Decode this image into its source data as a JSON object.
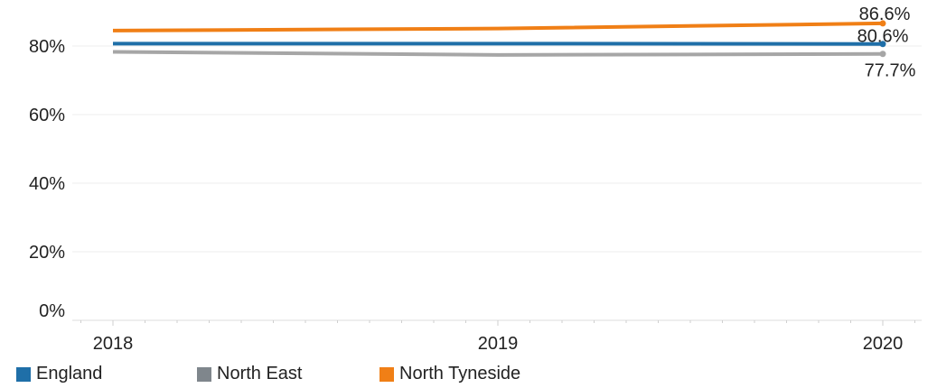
{
  "chart_data": {
    "type": "line",
    "x": [
      "2018",
      "2019",
      "2020"
    ],
    "ylim": [
      0,
      0.95
    ],
    "yticks": [
      0,
      0.2,
      0.4,
      0.6,
      0.8
    ],
    "ytick_labels": [
      "0%",
      "20%",
      "40%",
      "60%",
      "80%"
    ],
    "grid": "horizontal",
    "legend_position": "bottom-left",
    "title": "",
    "xlabel": "",
    "ylabel": "",
    "series": [
      {
        "name": "England",
        "color": "#1f6fa8",
        "values": [
          0.807,
          0.807,
          0.806
        ],
        "end_label": "80.6%"
      },
      {
        "name": "North East",
        "color": "#a6a6a6",
        "values": [
          0.783,
          0.774,
          0.777
        ],
        "end_label": "77.7%"
      },
      {
        "name": "North Tyneside",
        "color": "#f07f16",
        "values": [
          0.845,
          0.851,
          0.866
        ],
        "end_label": "86.6%"
      }
    ]
  },
  "legend": {
    "items": [
      {
        "label": "England",
        "color": "#1f6fa8"
      },
      {
        "label": "North East",
        "color": "#7f868c"
      },
      {
        "label": "North Tyneside",
        "color": "#f07f16"
      }
    ]
  }
}
